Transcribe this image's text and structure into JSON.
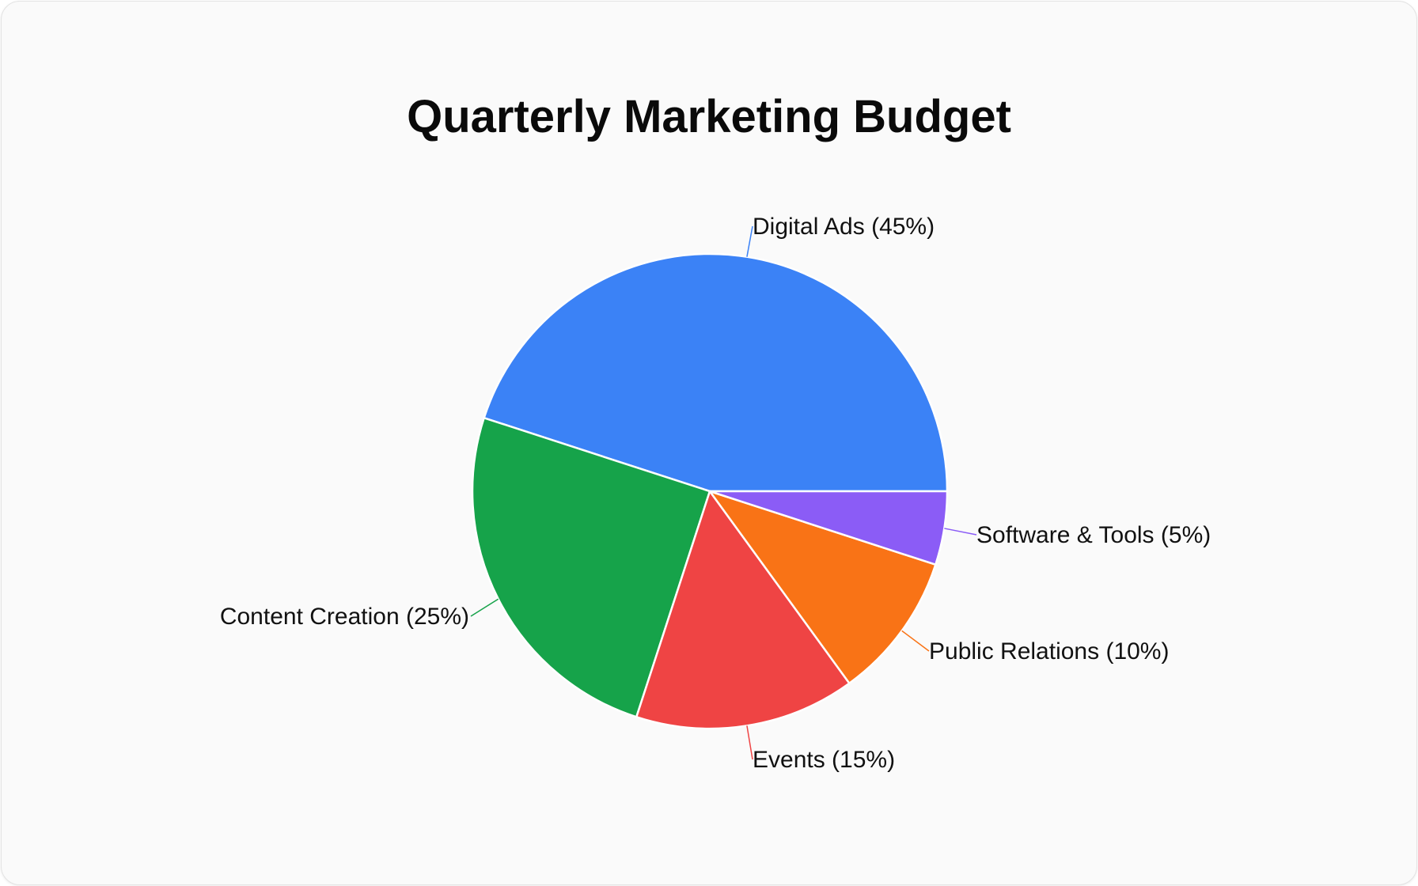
{
  "chart_data": {
    "type": "pie",
    "title": "Quarterly Marketing Budget",
    "categories": [
      "Digital Ads",
      "Content Creation",
      "Events",
      "Public Relations",
      "Software & Tools"
    ],
    "values": [
      45,
      25,
      15,
      10,
      5
    ],
    "unit": "%",
    "colors": [
      "#3b82f6",
      "#16a34a",
      "#ef4444",
      "#f97316",
      "#8b5cf6"
    ],
    "labels": [
      "Digital Ads (45%)",
      "Content Creation (25%)",
      "Events (15%)",
      "Public Relations (10%)",
      "Software & Tools (5%)"
    ],
    "start_angle": "3 o'clock, counter-clockwise",
    "legend": "none (outside labels with leader lines)"
  },
  "page": {
    "title": "Quarterly Marketing Budget"
  }
}
